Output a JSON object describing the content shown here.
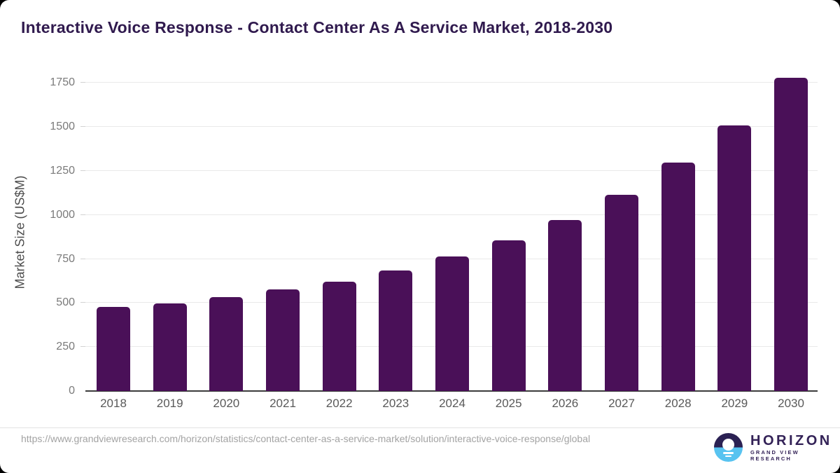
{
  "title": "Interactive Voice Response - Contact Center As A Service Market, 2018-2030",
  "chart_data": {
    "type": "bar",
    "categories": [
      "2018",
      "2019",
      "2020",
      "2021",
      "2022",
      "2023",
      "2024",
      "2025",
      "2026",
      "2027",
      "2028",
      "2029",
      "2030"
    ],
    "values": [
      476,
      498,
      535,
      578,
      622,
      685,
      765,
      857,
      971,
      1116,
      1297,
      1507,
      1780
    ],
    "title": "Interactive Voice Response - Contact Center As A Service Market, 2018-2030",
    "xlabel": "",
    "ylabel": "Market Size (US$M)",
    "ylim": [
      0,
      1750
    ],
    "yticks": [
      0,
      250,
      500,
      750,
      1000,
      1250,
      1500,
      1750
    ],
    "grid": true,
    "legend_position": "none",
    "bar_color": "#4a1058"
  },
  "footer": {
    "source_url": "https://www.grandviewresearch.com/horizon/statistics/contact-center-as-a-service-market/solution/interactive-voice-response/global",
    "logo_name": "HORIZON",
    "logo_subtitle": "GRAND VIEW RESEARCH"
  },
  "colors": {
    "bar": "#4a1058",
    "title_text": "#301a4e",
    "gridline": "#e9e9e9",
    "axis_line": "#3c3c3c",
    "tick_text": "#7a7a7a",
    "logo_dark": "#2b2153",
    "logo_blue": "#58c3f0"
  }
}
